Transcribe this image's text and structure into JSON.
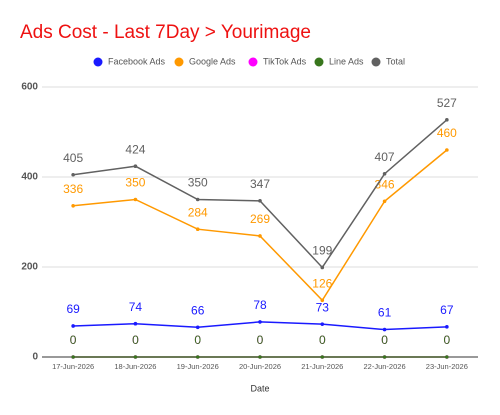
{
  "chart_data": {
    "type": "line",
    "title": "Ads Cost - Last 7Day > Yourimage",
    "x_label": "Date",
    "categories": [
      "17-Jun-2026",
      "18-Jun-2026",
      "19-Jun-2026",
      "20-Jun-2026",
      "21-Jun-2026",
      "22-Jun-2026",
      "23-Jun-2026"
    ],
    "series": [
      {
        "name": "Facebook Ads",
        "color": "#1a1aff",
        "values": [
          69,
          74,
          66,
          78,
          73,
          61,
          67
        ]
      },
      {
        "name": "Google Ads",
        "color": "#ff9900",
        "values": [
          336,
          350,
          284,
          269,
          126,
          346,
          460
        ]
      },
      {
        "name": "TikTok Ads",
        "color": "#ff00ff",
        "values": [
          0,
          0,
          0,
          0,
          0,
          0,
          0
        ]
      },
      {
        "name": "Line Ads",
        "color": "#38761d",
        "values": [
          0,
          0,
          0,
          0,
          0,
          0,
          0
        ]
      },
      {
        "name": "Total",
        "color": "#616161",
        "values": [
          405,
          424,
          350,
          347,
          199,
          407,
          527
        ]
      }
    ],
    "ylim": [
      0,
      600
    ],
    "yticks": [
      0,
      200,
      400,
      600
    ],
    "grid": true,
    "legend": "top"
  }
}
